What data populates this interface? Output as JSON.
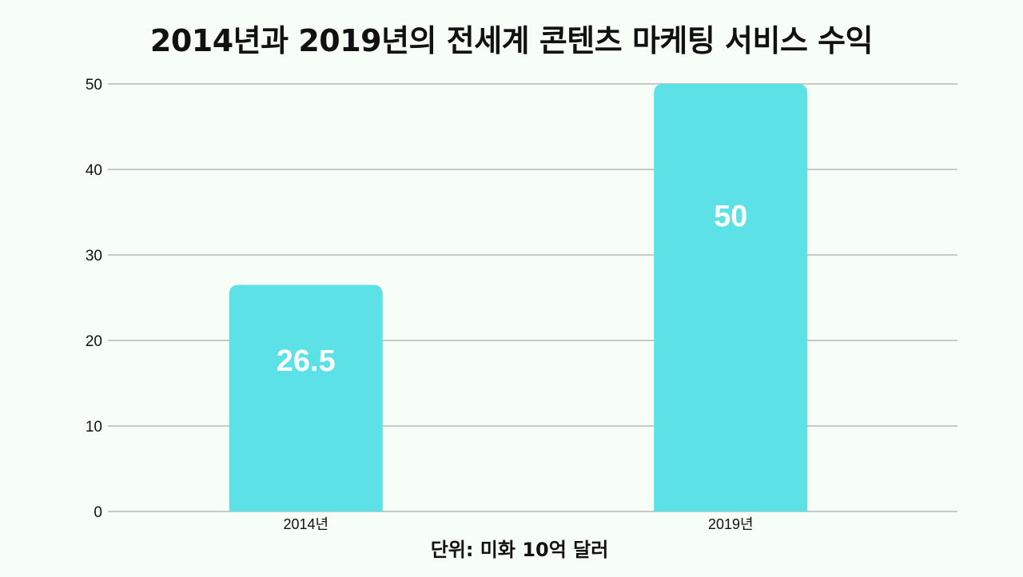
{
  "chart_data": {
    "type": "bar",
    "title": "2014년과 2019년의  전세계 콘텐츠 마케팅 서비스 수익",
    "xlabel": "단위: 미화 10억 달러",
    "ylabel": "",
    "categories": [
      "2014년",
      "2019년"
    ],
    "values": [
      26.5,
      50
    ],
    "data_labels": [
      "26.5",
      "50"
    ],
    "ylim": [
      0,
      50
    ],
    "yticks": [
      0,
      10,
      20,
      30,
      40,
      50
    ],
    "ytick_labels": [
      "0",
      "10",
      "20",
      "30",
      "40",
      "50"
    ],
    "grid": true,
    "legend": "none",
    "colors": {
      "bar": "#5ce1e6",
      "grid": "#b8b8b8",
      "background": "#f7fdf7",
      "label": "#ffffff"
    }
  }
}
